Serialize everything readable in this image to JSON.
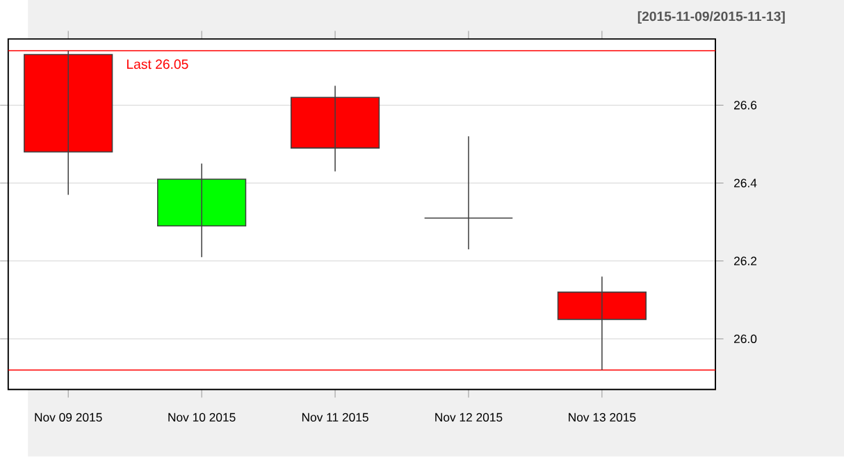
{
  "chart_data": {
    "type": "candlestick",
    "subtitle": "[2015-11-09/2015-11-13]",
    "categories": [
      "Nov 09 2015",
      "Nov 10 2015",
      "Nov 11 2015",
      "Nov 12 2015",
      "Nov 13 2015"
    ],
    "ohlc": [
      [
        26.73,
        26.74,
        26.37,
        26.48
      ],
      [
        26.29,
        26.45,
        26.21,
        26.41
      ],
      [
        26.62,
        26.65,
        26.43,
        26.49
      ],
      [
        26.31,
        26.52,
        26.23,
        26.31
      ],
      [
        26.12,
        26.16,
        25.92,
        26.05
      ]
    ],
    "colors": [
      "#ff0000",
      "#00ff00",
      "#ff0000",
      "#404040",
      "#ff0000"
    ],
    "ylim": [
      25.87,
      26.77
    ],
    "yticks": [
      {
        "value": 26.0,
        "label": "26.0"
      },
      {
        "value": 26.2,
        "label": "26.2"
      },
      {
        "value": 26.4,
        "label": "26.4"
      },
      {
        "value": 26.6,
        "label": "26.6"
      }
    ],
    "grid": "y",
    "ref_lines": [
      {
        "axis": "y",
        "value": 26.74,
        "color": "#ff0000"
      },
      {
        "axis": "y",
        "value": 25.92,
        "color": "#ff0000"
      }
    ],
    "annotations": [
      "Last 26.05"
    ]
  }
}
